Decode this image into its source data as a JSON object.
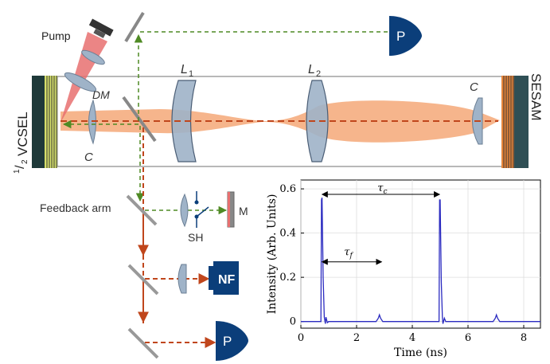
{
  "labels": {
    "pump": "Pump",
    "vcsel_frac_num": "1",
    "vcsel_frac_den": "2",
    "vcsel": "VCSEL",
    "dm": "DM",
    "c_left": "C",
    "c_right": "C",
    "l1_main": "L",
    "l1_sub": "1",
    "l2_main": "L",
    "l2_sub": "2",
    "sesam": "SESAM",
    "feedback_arm": "Feedback arm",
    "sh": "SH",
    "m": "M",
    "nf": "NF",
    "p_top": "P",
    "p_bottom": "P"
  },
  "colors": {
    "green_beam": "#4f8a24",
    "red_beam": "#c0461c",
    "beam_fill": "#f5a878",
    "detector_blue": "#0b3e7a",
    "lens_fill": "#9fb3c8",
    "plot_line": "#2b2bc0"
  },
  "chart_data": {
    "type": "line",
    "xlabel": "Time (ns)",
    "ylabel": "Intensity (Arb. Units)",
    "xlim": [
      0,
      8.6
    ],
    "ylim": [
      -0.03,
      0.64
    ],
    "xticks": [
      0,
      2,
      4,
      6,
      8
    ],
    "yticks": [
      0,
      0.2,
      0.4,
      0.6
    ],
    "xtick_labels": [
      "0",
      "2",
      "4",
      "6",
      "8"
    ],
    "ytick_labels": [
      "0",
      "0.2",
      "0.4",
      "0.6"
    ],
    "grid": true,
    "annotations": {
      "tau_c_main": "τ",
      "tau_c_sub": "c",
      "tau_f_main": "τ",
      "tau_f_sub": "f"
    },
    "series": [
      {
        "x": [
          0,
          0.5,
          0.72,
          0.74,
          0.76,
          0.8,
          0.84,
          0.88,
          0.9,
          0.95,
          1.0,
          1.5,
          2.0,
          2.7,
          2.78,
          2.82,
          2.86,
          2.94,
          3.5,
          4.0,
          4.6,
          4.96,
          4.98,
          5.0,
          5.04,
          5.08,
          5.1,
          5.15,
          5.2,
          5.6,
          6.0,
          6.9,
          6.98,
          7.02,
          7.06,
          7.14,
          7.8,
          8.6
        ],
        "values": [
          0.0,
          0.0,
          0.0,
          0.55,
          0.56,
          0.2,
          0.02,
          -0.01,
          0.02,
          -0.005,
          0.0,
          0.0,
          0.0,
          0.0,
          0.015,
          0.03,
          0.015,
          0.0,
          0.0,
          0.0,
          0.0,
          0.0,
          0.55,
          0.55,
          0.18,
          0.02,
          -0.01,
          0.015,
          0.0,
          0.0,
          0.0,
          0.0,
          0.015,
          0.03,
          0.015,
          0.0,
          0.0,
          0.0
        ]
      }
    ]
  }
}
